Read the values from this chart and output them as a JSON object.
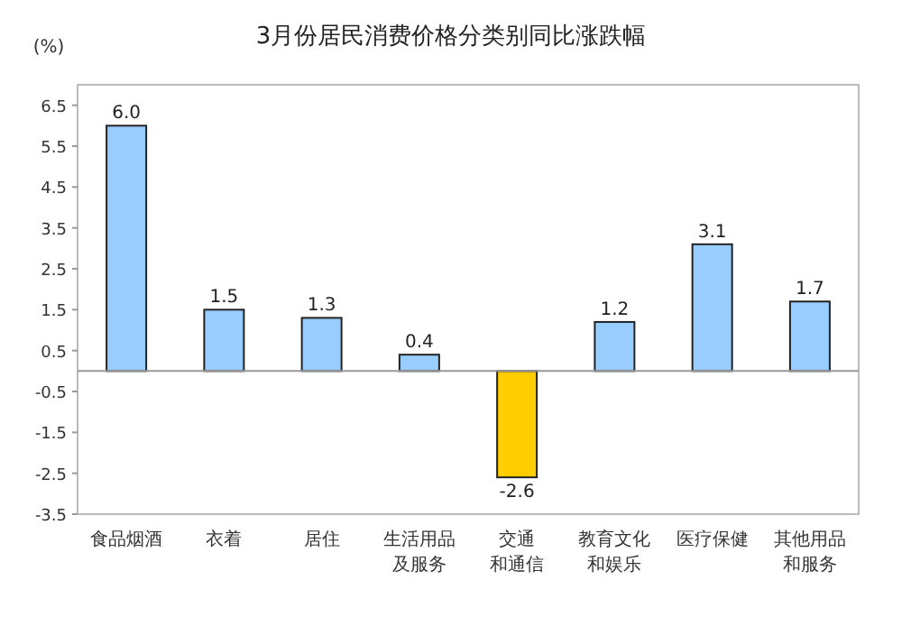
{
  "chart_data": {
    "type": "bar",
    "title": "3月份居民消费价格分类别同比涨跌幅",
    "ylabel": "(%)",
    "categories": [
      "食品烟酒",
      "衣着",
      "居住",
      "生活用品及服务",
      "交通和通信",
      "教育文化和娱乐",
      "医疗保健",
      "其他用品和服务"
    ],
    "values": [
      6.0,
      1.5,
      1.3,
      0.4,
      -2.6,
      1.2,
      3.1,
      1.7
    ],
    "colors": [
      "#99ccff",
      "#99ccff",
      "#99ccff",
      "#99ccff",
      "#ffcc00",
      "#99ccff",
      "#99ccff",
      "#99ccff"
    ],
    "ylim": [
      -3.5,
      7.0
    ],
    "yticks": [
      -3.5,
      -2.5,
      -1.5,
      -0.5,
      0.5,
      1.5,
      2.5,
      3.5,
      4.5,
      5.5,
      6.5
    ],
    "value_labels": [
      "6.0",
      "1.5",
      "1.3",
      "0.4",
      "-2.6",
      "1.2",
      "3.1",
      "1.7"
    ],
    "grid": false
  }
}
